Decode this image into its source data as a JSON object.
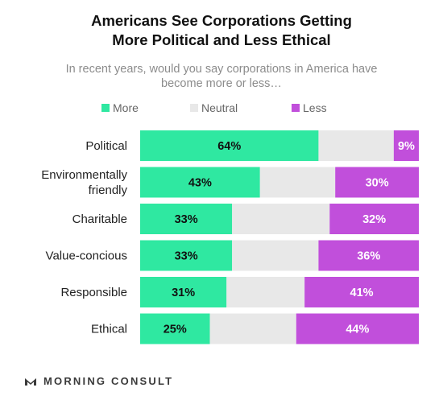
{
  "title_line1": "Americans See Corporations Getting",
  "title_line2": "More Political and Less Ethical",
  "subtitle_line1": "In recent years, would you say corporations in America have",
  "subtitle_line2": "become more or less…",
  "footer": {
    "brand": "MORNING CONSULT",
    "logo_icon": "morning-consult-logo-icon"
  },
  "colors": {
    "more": "#2FE8A1",
    "neutral": "#E8E8E8",
    "less": "#C14FDB"
  },
  "chart_data": {
    "type": "bar",
    "orientation": "horizontal",
    "stacked": true,
    "legend_position": "top",
    "categories": [
      [
        "Political"
      ],
      [
        "Environmentally",
        "friendly"
      ],
      [
        "Charitable"
      ],
      [
        "Value-concious"
      ],
      [
        "Responsible"
      ],
      [
        "Ethical"
      ]
    ],
    "series": [
      {
        "name": "More",
        "values": [
          64,
          43,
          33,
          33,
          31,
          25
        ],
        "labels": [
          "64%",
          "43%",
          "33%",
          "33%",
          "31%",
          "25%"
        ]
      },
      {
        "name": "Neutral",
        "values": [
          27,
          27,
          35,
          31,
          28,
          31
        ],
        "labels": [
          "",
          "",
          "",
          "",
          "",
          ""
        ]
      },
      {
        "name": "Less",
        "values": [
          9,
          30,
          32,
          36,
          41,
          44
        ],
        "labels": [
          "9%",
          "30%",
          "32%",
          "36%",
          "41%",
          "44%"
        ]
      }
    ],
    "xlim": [
      0,
      100
    ],
    "grid": false
  }
}
